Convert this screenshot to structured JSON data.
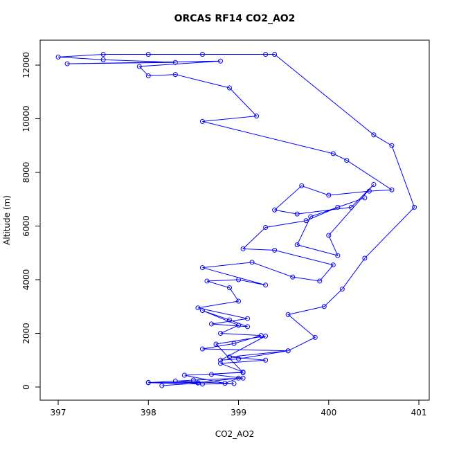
{
  "chart_data": {
    "type": "line",
    "title": "ORCAS RF14 CO2_AO2",
    "xlabel": "CO2_AO2",
    "ylabel": "Altitude (m)",
    "color": "#0000ff",
    "markers": true,
    "x": [
      398.15,
      398.55,
      398.3,
      398.95,
      398.6,
      398.0,
      398.5,
      399.05,
      398.7,
      399.05,
      398.8,
      399.3,
      398.9,
      399.55,
      398.6,
      398.95,
      399.25,
      398.8,
      399.0,
      398.6,
      398.9,
      399.1,
      398.7,
      399.1,
      398.55,
      399.0,
      398.9,
      398.65,
      399.0,
      399.3,
      398.6,
      399.15,
      399.6,
      399.9,
      400.05,
      399.4,
      399.05,
      399.3,
      399.75,
      400.1,
      400.4,
      399.8,
      399.65,
      400.1,
      400.0,
      400.5,
      400.25,
      399.65,
      399.4,
      399.7,
      400.0,
      400.45,
      400.7,
      400.2,
      400.05,
      398.6,
      399.2,
      398.9,
      398.3,
      398.0,
      397.9,
      398.8,
      397.1,
      398.3,
      397.5,
      397.0,
      397.5,
      398.6,
      398.0,
      399.3,
      399.4,
      400.5,
      400.7,
      400.95,
      400.4,
      400.15,
      399.95,
      399.55,
      399.85,
      399.55,
      399.0,
      398.8,
      399.3,
      398.75,
      399.05,
      398.4,
      398.85,
      399.0,
      398.55,
      398.0
    ],
    "values": [
      50,
      150,
      220,
      130,
      110,
      160,
      260,
      330,
      470,
      560,
      880,
      1000,
      1120,
      1350,
      1420,
      1620,
      1920,
      2000,
      2300,
      2850,
      2500,
      2250,
      2350,
      2550,
      2950,
      3200,
      3700,
      3950,
      4000,
      3800,
      4450,
      4650,
      4100,
      3950,
      4550,
      5100,
      5150,
      5950,
      6200,
      6700,
      7050,
      6350,
      5300,
      4900,
      5650,
      7550,
      6700,
      6450,
      6600,
      7500,
      7150,
      7300,
      7350,
      8450,
      8700,
      9900,
      10100,
      11150,
      11650,
      11600,
      11950,
      12150,
      12050,
      12100,
      12200,
      12300,
      12400,
      12400,
      12400,
      12400,
      12400,
      9400,
      9000,
      6700,
      4800,
      3650,
      3000,
      2700,
      1850,
      1350,
      1050,
      1000,
      1900,
      1600,
      540,
      440,
      140,
      330,
      160,
      170
    ],
    "xlim": [
      396.8,
      401.115
    ],
    "ylim": [
      -490,
      12930
    ],
    "xticks": [
      397,
      398,
      399,
      400,
      401
    ],
    "yticks": [
      0,
      2000,
      4000,
      6000,
      8000,
      10000,
      12000
    ]
  }
}
